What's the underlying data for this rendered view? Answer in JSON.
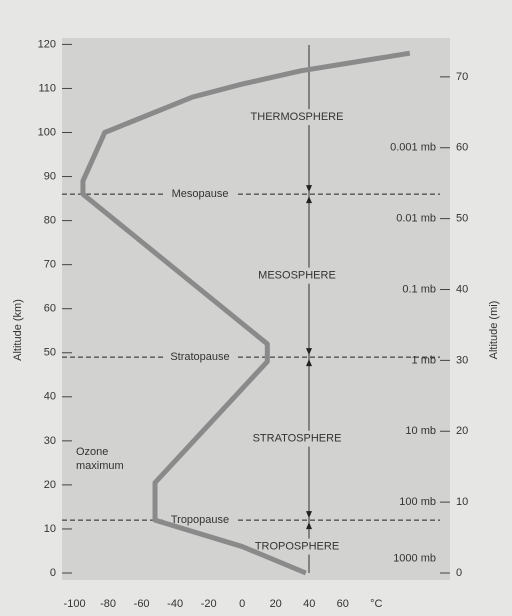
{
  "chart_data": {
    "type": "line",
    "y_label": "Altitude (km)",
    "y2_label": "Altitude (mi)",
    "x_unit": "°C",
    "xlim": [
      -107.5,
      124
    ],
    "ylim": [
      0,
      121
    ],
    "y2lim": [
      0,
      75.2
    ],
    "xticks": [
      -100,
      -80,
      -60,
      -40,
      -20,
      0,
      20,
      40,
      60
    ],
    "yticks": [
      0,
      10,
      20,
      30,
      40,
      50,
      60,
      70,
      80,
      90,
      100,
      110,
      120
    ],
    "y2ticks": [
      0,
      10,
      20,
      30,
      40,
      50,
      60,
      70
    ],
    "series": [
      {
        "color": "#8a8a8a",
        "x": [
          38,
          0,
          -52,
          -52,
          15,
          15,
          -95,
          -95,
          -82,
          -30,
          0,
          35,
          100
        ],
        "values": [
          0,
          6,
          12,
          20.5,
          48,
          52,
          86,
          89,
          100,
          108,
          111,
          114,
          118
        ]
      }
    ],
    "boundaries": [
      {
        "label": "Tropopause",
        "value": 12
      },
      {
        "label": "Stratopause",
        "value": 49
      },
      {
        "label": "Mesopause",
        "value": 86
      }
    ],
    "layers": [
      "TROPOSPHERE",
      "STRATOSPHERE",
      "MESOSPHERE",
      "THERMOSPHERE"
    ],
    "pressure_levels": [
      {
        "label": "1000 mb",
        "value": 2
      },
      {
        "label": "100 mb",
        "value": 10
      },
      {
        "label": "10 mb",
        "value": 20
      },
      {
        "label": "1 mb",
        "value": 30
      },
      {
        "label": "0.1 mb",
        "value": 40
      },
      {
        "label": "0.01 mb",
        "value": 50
      },
      {
        "label": "0.001 mb",
        "value": 60
      }
    ],
    "annotation": "Ozone maximum"
  }
}
